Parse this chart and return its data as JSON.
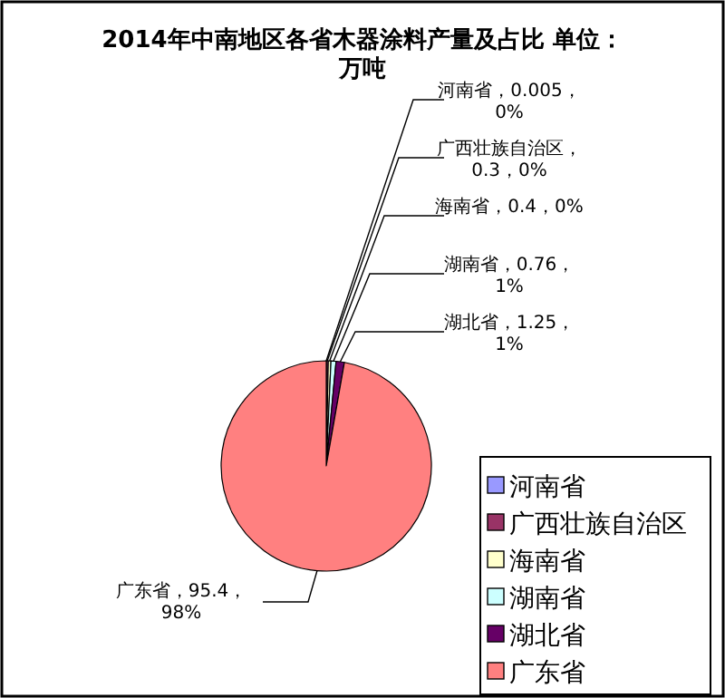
{
  "chart_data": {
    "type": "pie",
    "title": "2014年中南地区各省木器涂料产量及占比 单位：万吨",
    "categories": [
      "河南省",
      "广西壮族自治区",
      "海南省",
      "湖南省",
      "湖北省",
      "广东省"
    ],
    "values": [
      0.005,
      0.3,
      0.4,
      0.76,
      1.25,
      95.4
    ],
    "value_labels": [
      "河南省，0.005，0%",
      "广西壮族自治区，0.3，0%",
      "海南省，0.4，0%",
      "湖南省，0.76，1%",
      "湖北省，1.25，1%",
      "广东省，95.4，98%"
    ],
    "colors": [
      "#9999ff",
      "#993366",
      "#ffffcc",
      "#ccffff",
      "#660066",
      "#ff8080"
    ],
    "legend": "bottom right"
  }
}
